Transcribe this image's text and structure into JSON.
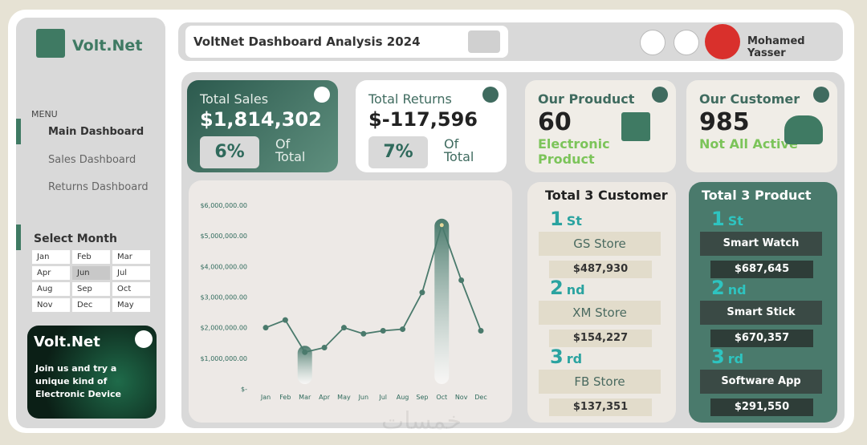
{
  "sidebar": {
    "brand": "Volt.Net",
    "menu_title": "MENU",
    "menu": [
      "Main Dashboard",
      "Sales Dashboard",
      "Returns Dashboard"
    ],
    "select_month": "Select Month",
    "months": [
      "Jan",
      "Feb",
      "Mar",
      "Apr",
      "Jun",
      "Jul",
      "Aug",
      "Sep",
      "Oct",
      "Nov",
      "Dec",
      "May"
    ],
    "promo": {
      "brand": "Volt.Net",
      "text": "Join us and try a unique kind of Electronic Device"
    }
  },
  "header": {
    "title": "VoltNet Dashboard Analysis 2024",
    "user": "Mohamed Yasser"
  },
  "kpis": [
    {
      "title": "Total Sales",
      "value": "$1,814,302",
      "percent": "6%",
      "percent_label": "Of Total"
    },
    {
      "title": "Total Returns",
      "value": "$-117,596",
      "percent": "7%",
      "percent_label": "Of Total"
    },
    {
      "title": "Our Prouduct",
      "value": "60",
      "subtitle": "Electronic Product"
    },
    {
      "title": "Our Customer",
      "value": "985",
      "subtitle": "Not All Active"
    }
  ],
  "chart": {
    "type": "line",
    "categories": [
      "Jan",
      "Feb",
      "Mar",
      "Apr",
      "May",
      "Jun",
      "Jul",
      "Aug",
      "Sep",
      "Oct",
      "Nov",
      "Dec"
    ],
    "values": [
      2000000,
      2250000,
      1200000,
      1350000,
      2000000,
      1800000,
      1900000,
      1950000,
      3150000,
      5350000,
      3550000,
      1900000
    ],
    "color": "#4a7a6c",
    "ylim": [
      0,
      6000000
    ],
    "yticks": [
      {
        "value": 0,
        "label": "$-"
      },
      {
        "value": 1000000,
        "label": "$1,000,000.00"
      },
      {
        "value": 2000000,
        "label": "$2,000,000.00"
      },
      {
        "value": 3000000,
        "label": "$3,000,000.00"
      },
      {
        "value": 4000000,
        "label": "$4,000,000.00"
      },
      {
        "value": 5000000,
        "label": "$5,000,000.00"
      },
      {
        "value": 6000000,
        "label": "$6,000,000.00"
      }
    ]
  },
  "top_customers": {
    "title": "Total 3 Customer",
    "items": [
      {
        "rank": "1",
        "suffix": "St",
        "name": "GS Store",
        "value": "$487,930"
      },
      {
        "rank": "2",
        "suffix": "nd",
        "name": "XM Store",
        "value": "$154,227"
      },
      {
        "rank": "3",
        "suffix": "rd",
        "name": "FB Store",
        "value": "$137,351"
      }
    ]
  },
  "top_products": {
    "title": "Total 3 Product",
    "items": [
      {
        "rank": "1",
        "suffix": "St",
        "name": "Smart Watch",
        "value": "$687,645"
      },
      {
        "rank": "2",
        "suffix": "nd",
        "name": "Smart Stick",
        "value": "$670,357"
      },
      {
        "rank": "3",
        "suffix": "rd",
        "name": "Software App",
        "value": "$291,550"
      }
    ]
  },
  "watermark": "خمسات"
}
